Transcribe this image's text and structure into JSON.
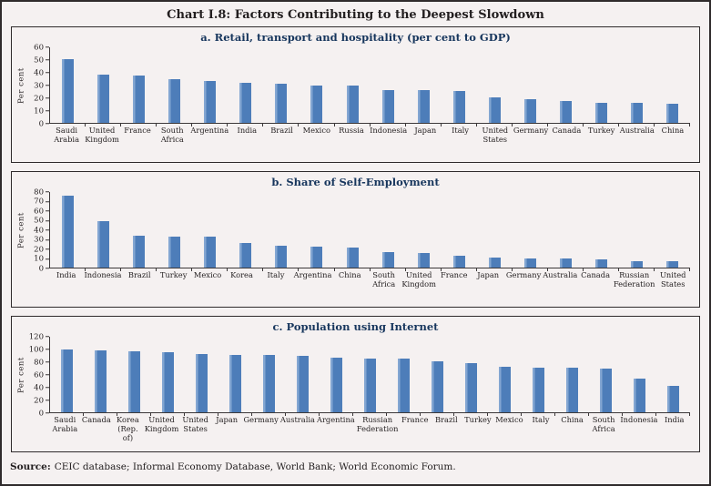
{
  "window": {
    "title": "Chart I.8: Factors Contributing to the Deepest Slowdown"
  },
  "footer": {
    "source_label": "Source:",
    "source_text": "CEIC database; Informal Economy Database, World Bank; World Economic Forum."
  },
  "colors": {
    "bar_fill": "#4d7db9",
    "bar_highlight": "#83a6d2",
    "panel_title": "#17365d",
    "main_title": "#221e1f",
    "background": "#f5f1f1",
    "axis": "#3c3839"
  },
  "chart_data": [
    {
      "type": "bar",
      "title": "a. Retail, transport and hospitality (per cent to GDP)",
      "ylabel": "Per cent",
      "ylim": [
        0,
        60
      ],
      "ytick_step": 10,
      "grid": false,
      "categories": [
        "Saudi Arabia",
        "United Kingdom",
        "France",
        "South Africa",
        "Argentina",
        "India",
        "Brazil",
        "Mexico",
        "Russia",
        "Indonesia",
        "Japan",
        "Italy",
        "United States",
        "Germany",
        "Canada",
        "Turkey",
        "Australia",
        "China"
      ],
      "values": [
        50,
        38,
        37,
        34,
        33,
        31.5,
        30.5,
        29.5,
        29,
        26,
        25.5,
        25,
        20,
        18.5,
        17,
        16,
        15.5,
        15
      ]
    },
    {
      "type": "bar",
      "title": "b. Share of Self-Employment",
      "ylabel": "Per cent",
      "ylim": [
        0,
        80
      ],
      "ytick_step": 10,
      "grid": false,
      "categories": [
        "India",
        "Indonesia",
        "Brazil",
        "Turkey",
        "Mexico",
        "Korea",
        "Italy",
        "Argentina",
        "China",
        "South Africa",
        "United Kingdom",
        "France",
        "Japan",
        "Germany",
        "Australia",
        "Canada",
        "Russian Federation",
        "United States"
      ],
      "values": [
        75.5,
        49,
        33,
        32.5,
        32,
        25.5,
        23,
        22,
        21,
        16,
        15.5,
        12,
        10.5,
        10,
        9.5,
        8.5,
        7,
        6.5
      ]
    },
    {
      "type": "bar",
      "title": "c. Population using Internet",
      "ylabel": "Per cent",
      "ylim": [
        0,
        120
      ],
      "ytick_step": 20,
      "grid": false,
      "categories": [
        "Saudi Arabia",
        "Canada",
        "Korea (Rep. of)",
        "United Kingdom",
        "United States",
        "Japan",
        "Germany",
        "Australia",
        "Argentina",
        "Russian Federation",
        "France",
        "Brazil",
        "Turkey",
        "Mexico",
        "Italy",
        "China",
        "South Africa",
        "Indonesia",
        "India"
      ],
      "values": [
        98,
        97,
        96,
        95,
        91,
        90,
        89.5,
        89,
        85.5,
        85,
        84.5,
        80,
        77,
        71,
        70,
        69.5,
        68.5,
        53,
        41
      ]
    }
  ]
}
